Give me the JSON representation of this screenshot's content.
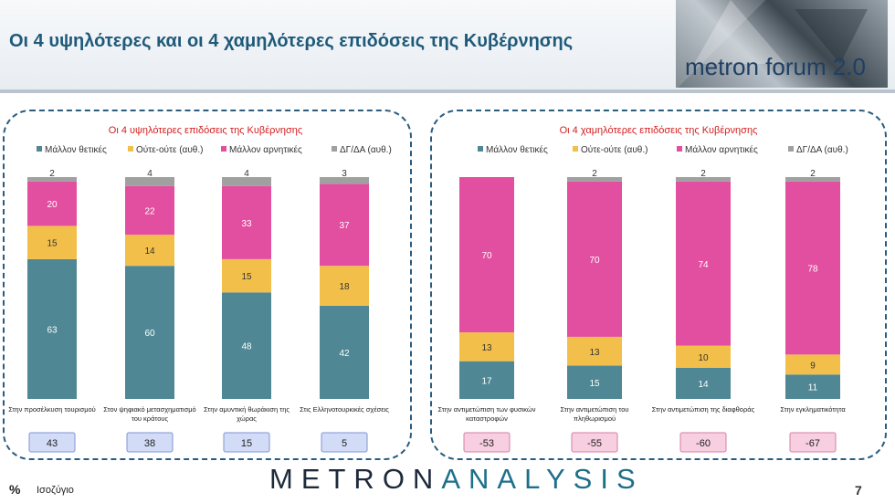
{
  "header": {
    "title": "Οι 4 υψηλότερες και οι 4 χαμηλότερες επιδόσεις της Κυβέρνησης",
    "logo_text": "metron forum 2.0"
  },
  "colors": {
    "positive": "#4f8794",
    "neutral": "#f2c04a",
    "negative": "#e34fa0",
    "dkna": "#a0a0a0",
    "chart_title": "#d21e1e",
    "balance_pos_bg": "#d3dcf7",
    "balance_neg_bg": "#f7cfe0"
  },
  "chart_data": [
    {
      "type": "bar",
      "stacked": true,
      "title": "Οι 4 υψηλότερες επιδόσεις της Κυβέρνησης",
      "legend": [
        "Μάλλον θετικές",
        "Ούτε-ούτε  (αυθ.)",
        "Μάλλον αρνητικές",
        "ΔΓ/ΔΑ (αυθ.)"
      ],
      "categories": [
        [
          "Στην προσέλκυση τουρισμού"
        ],
        [
          "Στον ψηφιακό μετασχηματισμό",
          "του κράτους"
        ],
        [
          "Στην αμυντική θωράκιση της",
          "χώρας"
        ],
        [
          "Στις Ελληνοτουρκικές σχέσεις"
        ]
      ],
      "series": [
        {
          "name": "Μάλλον θετικές",
          "values": [
            63,
            60,
            48,
            42
          ]
        },
        {
          "name": "Ούτε-ούτε  (αυθ.)",
          "values": [
            15,
            14,
            15,
            18
          ]
        },
        {
          "name": "Μάλλον αρνητικές",
          "values": [
            20,
            22,
            33,
            37
          ]
        },
        {
          "name": "ΔΓ/ΔΑ (αυθ.)",
          "values": [
            2,
            4,
            4,
            3
          ]
        }
      ],
      "balance": [
        "43",
        "38",
        "15",
        "5"
      ],
      "legend_position": "top",
      "grid": false
    },
    {
      "type": "bar",
      "stacked": true,
      "title": "Οι 4 χαμηλότερες επιδόσεις της Κυβέρνησης",
      "legend": [
        "Μάλλον θετικές",
        "Ούτε-ούτε  (αυθ.)",
        "Μάλλον αρνητικές",
        "ΔΓ/ΔΑ (αυθ.)"
      ],
      "categories": [
        [
          "Στην αντιμετώπιση των φυσικών",
          "καταστροφών"
        ],
        [
          "Στην αντιμετώπιση του",
          "πληθωρισμού"
        ],
        [
          "Στην αντιμετώπιση της διαφθοράς"
        ],
        [
          "Στην εγκληματικότητα"
        ]
      ],
      "series": [
        {
          "name": "Μάλλον θετικές",
          "values": [
            17,
            15,
            14,
            11
          ]
        },
        {
          "name": "Ούτε-ούτε  (αυθ.)",
          "values": [
            13,
            13,
            10,
            9
          ]
        },
        {
          "name": "Μάλλον αρνητικές",
          "values": [
            70,
            70,
            74,
            78
          ]
        },
        {
          "name": "ΔΓ/ΔΑ (αυθ.)",
          "values": [
            null,
            2,
            2,
            2
          ]
        }
      ],
      "balance": [
        "-53",
        "-55",
        "-60",
        "-67"
      ],
      "legend_position": "top",
      "grid": false
    }
  ],
  "footer": {
    "percent_symbol": "%",
    "balance_label": "Ισοζύγιο",
    "brand_bold": "METRON",
    "brand_thin": "ANALYSIS",
    "page_number": "7"
  }
}
